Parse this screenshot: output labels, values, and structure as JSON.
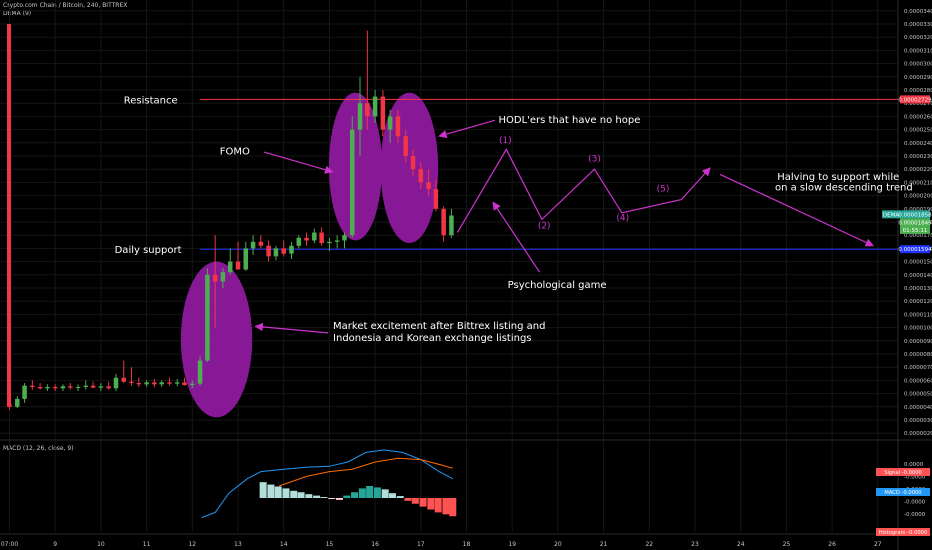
{
  "header": {
    "symbol_line": "Crypto.com Chain / Bitcoin, 240, BITTREX",
    "indicator_line": "DEMA (9)",
    "macd_line": "MACD (12, 26, close, 9)"
  },
  "chart_data": {
    "type": "candlestick",
    "title": "Crypto.com Chain / Bitcoin, 240, BITTREX",
    "y_axis": {
      "ticks": [
        "0.00003400",
        "0.00003300",
        "0.00003200",
        "0.00003100",
        "0.00003000",
        "0.00002900",
        "0.00002800",
        "0.00002700",
        "0.00002600",
        "0.00002500",
        "0.00002400",
        "0.00002300",
        "0.00002200",
        "0.00002100",
        "0.00002000",
        "0.00001900",
        "0.00001800",
        "0.00001700",
        "0.00001600",
        "0.00001500",
        "0.00001400",
        "0.00001300",
        "0.00001200",
        "0.00001100",
        "0.00001000",
        "0.00000900",
        "0.00000800",
        "0.00000700",
        "0.00000600",
        "0.00000500",
        "0.00000400",
        "0.00000300",
        "0.00000200"
      ],
      "price_tags": [
        {
          "label": "0.00002729",
          "value": 2.729e-05,
          "color": "#f23645"
        },
        {
          "label": "DEMA",
          "value": 1.858e-05,
          "color": "#26a69a"
        },
        {
          "label": "0.00001858",
          "value": 1.858e-05,
          "color": "#26a69a"
        },
        {
          "label": "0.00001849",
          "value": 1.798e-05,
          "color": "#4caf50"
        },
        {
          "label": "01:55:11",
          "value": 1.74e-05,
          "color": "#4caf50"
        },
        {
          "label": "0.00001594",
          "value": 1.594e-05,
          "color": "#1e33ff"
        }
      ]
    },
    "x_axis": {
      "ticks": [
        "07:00",
        "9",
        "10",
        "11",
        "12",
        "13",
        "14",
        "15",
        "16",
        "17",
        "18",
        "19",
        "20",
        "21",
        "22",
        "23",
        "24",
        "25",
        "26",
        "27"
      ]
    },
    "levels": [
      {
        "name": "Resistance",
        "value": 2.729e-05,
        "color": "#f23645"
      },
      {
        "name": "Daily support",
        "value": 1.594e-05,
        "color": "#1e33ff"
      }
    ],
    "candles": [
      {
        "d": 8.0,
        "o": 4.2e-06,
        "h": 4.4e-06,
        "l": 3.8e-06,
        "c": 4e-06
      },
      {
        "d": 8.17,
        "o": 4e-06,
        "h": 4.8e-06,
        "l": 3.9e-06,
        "c": 4.6e-06
      },
      {
        "d": 8.33,
        "o": 4.6e-06,
        "h": 5.8e-06,
        "l": 4.3e-06,
        "c": 5.6e-06
      },
      {
        "d": 8.5,
        "o": 5.6e-06,
        "h": 6e-06,
        "l": 5.3e-06,
        "c": 5.5e-06
      },
      {
        "d": 8.67,
        "o": 5.5e-06,
        "h": 5.8e-06,
        "l": 5.3e-06,
        "c": 5.4e-06
      },
      {
        "d": 8.83,
        "o": 5.4e-06,
        "h": 5.7e-06,
        "l": 5.2e-06,
        "c": 5.5e-06
      },
      {
        "d": 9.0,
        "o": 5.5e-06,
        "h": 5.7e-06,
        "l": 5.2e-06,
        "c": 5.4e-06
      },
      {
        "d": 9.17,
        "o": 5.4e-06,
        "h": 5.7e-06,
        "l": 5.2e-06,
        "c": 5.55e-06
      },
      {
        "d": 9.33,
        "o": 5.55e-06,
        "h": 5.8e-06,
        "l": 5.3e-06,
        "c": 5.45e-06
      },
      {
        "d": 9.5,
        "o": 5.45e-06,
        "h": 5.7e-06,
        "l": 5.2e-06,
        "c": 5.5e-06
      },
      {
        "d": 9.67,
        "o": 5.5e-06,
        "h": 6e-06,
        "l": 5.3e-06,
        "c": 5.6e-06
      },
      {
        "d": 9.83,
        "o": 5.6e-06,
        "h": 5.9e-06,
        "l": 5.4e-06,
        "c": 5.45e-06
      },
      {
        "d": 10.0,
        "o": 5.45e-06,
        "h": 5.8e-06,
        "l": 5.2e-06,
        "c": 5.55e-06
      },
      {
        "d": 10.17,
        "o": 5.55e-06,
        "h": 5.9e-06,
        "l": 5.3e-06,
        "c": 5.4e-06
      },
      {
        "d": 10.33,
        "o": 5.4e-06,
        "h": 6.5e-06,
        "l": 5.2e-06,
        "c": 6.2e-06
      },
      {
        "d": 10.5,
        "o": 6.2e-06,
        "h": 7.5e-06,
        "l": 5.8e-06,
        "c": 5.9e-06
      },
      {
        "d": 10.67,
        "o": 5.9e-06,
        "h": 7e-06,
        "l": 5.6e-06,
        "c": 5.8e-06
      },
      {
        "d": 10.83,
        "o": 5.8e-06,
        "h": 6.2e-06,
        "l": 5.5e-06,
        "c": 5.7e-06
      },
      {
        "d": 11.0,
        "o": 5.7e-06,
        "h": 6e-06,
        "l": 5.5e-06,
        "c": 5.85e-06
      },
      {
        "d": 11.17,
        "o": 5.85e-06,
        "h": 6.1e-06,
        "l": 5.5e-06,
        "c": 5.7e-06
      },
      {
        "d": 11.33,
        "o": 5.7e-06,
        "h": 6e-06,
        "l": 5.5e-06,
        "c": 5.85e-06
      },
      {
        "d": 11.5,
        "o": 5.85e-06,
        "h": 6.2e-06,
        "l": 5.6e-06,
        "c": 5.75e-06
      },
      {
        "d": 11.67,
        "o": 5.75e-06,
        "h": 6.1e-06,
        "l": 5.55e-06,
        "c": 5.85e-06
      },
      {
        "d": 11.83,
        "o": 5.85e-06,
        "h": 6.2e-06,
        "l": 5.6e-06,
        "c": 5.65e-06
      },
      {
        "d": 12.0,
        "o": 5.65e-06,
        "h": 6e-06,
        "l": 5.4e-06,
        "c": 5.75e-06
      },
      {
        "d": 12.17,
        "o": 5.75e-06,
        "h": 7.8e-06,
        "l": 5.6e-06,
        "c": 7.5e-06
      },
      {
        "d": 12.33,
        "o": 7.5e-06,
        "h": 1.45e-05,
        "l": 7.4e-06,
        "c": 1.4e-05
      },
      {
        "d": 12.5,
        "o": 1.4e-05,
        "h": 1.7e-05,
        "l": 1e-05,
        "c": 1.35e-05
      },
      {
        "d": 12.67,
        "o": 1.35e-05,
        "h": 1.45e-05,
        "l": 1.3e-05,
        "c": 1.42e-05
      },
      {
        "d": 12.83,
        "o": 1.42e-05,
        "h": 1.6e-05,
        "l": 1.4e-05,
        "c": 1.5e-05
      },
      {
        "d": 13.0,
        "o": 1.5e-05,
        "h": 1.65e-05,
        "l": 1.45e-05,
        "c": 1.44e-05
      },
      {
        "d": 13.17,
        "o": 1.44e-05,
        "h": 1.65e-05,
        "l": 1.43e-05,
        "c": 1.6e-05
      },
      {
        "d": 13.33,
        "o": 1.6e-05,
        "h": 1.7e-05,
        "l": 1.55e-05,
        "c": 1.65e-05
      },
      {
        "d": 13.5,
        "o": 1.65e-05,
        "h": 1.7e-05,
        "l": 1.6e-05,
        "c": 1.62e-05
      },
      {
        "d": 13.67,
        "o": 1.62e-05,
        "h": 1.66e-05,
        "l": 1.5e-05,
        "c": 1.54e-05
      },
      {
        "d": 13.83,
        "o": 1.54e-05,
        "h": 1.62e-05,
        "l": 1.51e-05,
        "c": 1.6e-05
      },
      {
        "d": 14.0,
        "o": 1.6e-05,
        "h": 1.66e-05,
        "l": 1.54e-05,
        "c": 1.56e-05
      },
      {
        "d": 14.17,
        "o": 1.56e-05,
        "h": 1.65e-05,
        "l": 1.52e-05,
        "c": 1.62e-05
      },
      {
        "d": 14.33,
        "o": 1.62e-05,
        "h": 1.7e-05,
        "l": 1.6e-05,
        "c": 1.68e-05
      },
      {
        "d": 14.5,
        "o": 1.68e-05,
        "h": 1.72e-05,
        "l": 1.62e-05,
        "c": 1.66e-05
      },
      {
        "d": 14.67,
        "o": 1.66e-05,
        "h": 1.75e-05,
        "l": 1.64e-05,
        "c": 1.72e-05
      },
      {
        "d": 14.83,
        "o": 1.72e-05,
        "h": 1.76e-05,
        "l": 1.62e-05,
        "c": 1.64e-05
      },
      {
        "d": 15.0,
        "o": 1.64e-05,
        "h": 1.68e-05,
        "l": 1.58e-05,
        "c": 1.65e-05
      },
      {
        "d": 15.17,
        "o": 1.65e-05,
        "h": 1.7e-05,
        "l": 1.6e-05,
        "c": 1.66e-05
      },
      {
        "d": 15.33,
        "o": 1.66e-05,
        "h": 1.72e-05,
        "l": 1.6e-05,
        "c": 1.7e-05
      },
      {
        "d": 15.5,
        "o": 1.7e-05,
        "h": 2.6e-05,
        "l": 1.68e-05,
        "c": 2.5e-05
      },
      {
        "d": 15.67,
        "o": 2.5e-05,
        "h": 2.9e-05,
        "l": 2.3e-05,
        "c": 2.7e-05
      },
      {
        "d": 15.83,
        "o": 2.7e-05,
        "h": 3.25e-05,
        "l": 2.5e-05,
        "c": 2.6e-05
      },
      {
        "d": 16.0,
        "o": 2.6e-05,
        "h": 2.8e-05,
        "l": 2.55e-05,
        "c": 2.75e-05
      },
      {
        "d": 16.17,
        "o": 2.75e-05,
        "h": 2.8e-05,
        "l": 2.45e-05,
        "c": 2.5e-05
      },
      {
        "d": 16.33,
        "o": 2.5e-05,
        "h": 2.65e-05,
        "l": 2.4e-05,
        "c": 2.6e-05
      },
      {
        "d": 16.5,
        "o": 2.6e-05,
        "h": 2.65e-05,
        "l": 2.4e-05,
        "c": 2.45e-05
      },
      {
        "d": 16.67,
        "o": 2.45e-05,
        "h": 2.5e-05,
        "l": 2.25e-05,
        "c": 2.3e-05
      },
      {
        "d": 16.83,
        "o": 2.3e-05,
        "h": 2.35e-05,
        "l": 2.15e-05,
        "c": 2.2e-05
      },
      {
        "d": 17.0,
        "o": 2.2e-05,
        "h": 2.25e-05,
        "l": 2.05e-05,
        "c": 2.1e-05
      },
      {
        "d": 17.17,
        "o": 2.1e-05,
        "h": 2.2e-05,
        "l": 2e-05,
        "c": 2.05e-05
      },
      {
        "d": 17.33,
        "o": 2.05e-05,
        "h": 2.12e-05,
        "l": 1.88e-05,
        "c": 1.9e-05
      },
      {
        "d": 17.5,
        "o": 1.9e-05,
        "h": 1.92e-05,
        "l": 1.65e-05,
        "c": 1.7e-05
      },
      {
        "d": 17.67,
        "o": 1.7e-05,
        "h": 1.9e-05,
        "l": 1.68e-05,
        "c": 1.849e-05
      }
    ],
    "highlights": [
      {
        "name": "excitement-ellipse",
        "cx": 12.53,
        "cy": 9.1e-06,
        "rx": 0.78,
        "ry": 5.9e-06
      },
      {
        "name": "fomo-ellipse",
        "cx": 15.57,
        "cy": 2.22e-05,
        "rx": 0.58,
        "ry": 5.6e-06
      },
      {
        "name": "hodl-ellipse",
        "cx": 16.75,
        "cy": 2.21e-05,
        "rx": 0.63,
        "ry": 5.7e-06
      }
    ],
    "projection": {
      "path": [
        [
          17.8,
          1.72e-05
        ],
        [
          18.87,
          2.35e-05
        ],
        [
          19.65,
          1.82e-05
        ],
        [
          20.8,
          2.2e-05
        ],
        [
          21.4,
          1.87e-05
        ],
        [
          22.7,
          1.97e-05
        ],
        [
          23.33,
          2.21e-05
        ]
      ],
      "labels": [
        {
          "text": "(1)",
          "x": 18.85,
          "y": 2.4e-05
        },
        {
          "text": "(2)",
          "x": 19.7,
          "y": 1.75e-05
        },
        {
          "text": "(3)",
          "x": 20.8,
          "y": 2.26e-05
        },
        {
          "text": "(4)",
          "x": 21.42,
          "y": 1.81e-05
        },
        {
          "text": "(5)",
          "x": 22.3,
          "y": 2.03e-05
        }
      ]
    },
    "annotations": [
      {
        "name": "resistance-label",
        "text": "Resistance",
        "x": 10.5,
        "y": 2.729e-05
      },
      {
        "name": "daily-support-label",
        "text": "Daily support",
        "x": 10.3,
        "y": 1.594e-05
      },
      {
        "name": "fomo-label",
        "text": "FOMO",
        "x": 12.6,
        "y": 2.34e-05
      },
      {
        "name": "hodl-label",
        "text": "HODL'ers that have no hope",
        "x": 18.7,
        "y": 2.58e-05
      },
      {
        "name": "psych-label",
        "text": "Psychological game",
        "x": 18.9,
        "y": 1.33e-05
      },
      {
        "name": "excitement-label-1",
        "text": "Market excitement after Bittrex listing and",
        "x": 15.08,
        "y": 1.02e-05
      },
      {
        "name": "excitement-label-2",
        "text": "Indonesia and Korean exchange listings",
        "x": 15.08,
        "y": 9.3e-06
      },
      {
        "name": "halving-label-1",
        "text": "Halving to support while",
        "x": 24.8,
        "y": 2.15e-05
      },
      {
        "name": "halving-label-2",
        "text": "on a slow descending trend",
        "x": 24.75,
        "y": 2.07e-05
      }
    ],
    "arrows": [
      {
        "name": "fomo-arrow",
        "from": [
          13.57,
          2.33e-05
        ],
        "to": [
          15.07,
          2.18e-05
        ]
      },
      {
        "name": "hodl-arrow",
        "from": [
          18.62,
          2.57e-05
        ],
        "to": [
          17.4,
          2.45e-05
        ]
      },
      {
        "name": "psych-arrow",
        "from": [
          19.6,
          1.42e-05
        ],
        "to": [
          18.58,
          1.95e-05
        ]
      },
      {
        "name": "excitement-arrow",
        "from": [
          14.97,
          9.6e-06
        ],
        "to": [
          13.38,
          1.01e-05
        ]
      },
      {
        "name": "halving-arrow",
        "from": [
          23.55,
          2.16e-05
        ],
        "to": [
          26.9,
          1.62e-05
        ]
      }
    ],
    "macd": {
      "title": "MACD (12, 26, close, 9)",
      "ticks": [
        "0.0000",
        "-0.0000",
        "-0.0000",
        "-0.0000",
        "-0.0000"
      ],
      "tags": [
        {
          "label": "Signal",
          "value": "-0.0000",
          "color": "#ff5252"
        },
        {
          "label": "MACD",
          "value": "-0.0000",
          "color": "#2196f3"
        },
        {
          "label": "Histogram",
          "value": "-0.0000",
          "color": "#ff5252"
        }
      ],
      "macd_line": [
        [
          12.2,
          -0.41
        ],
        [
          12.5,
          -0.3
        ],
        [
          12.8,
          0.1
        ],
        [
          13.2,
          0.4
        ],
        [
          13.5,
          0.55
        ],
        [
          14.0,
          0.6
        ],
        [
          14.5,
          0.64
        ],
        [
          15.0,
          0.66
        ],
        [
          15.4,
          0.75
        ],
        [
          15.8,
          0.95
        ],
        [
          16.2,
          1.0
        ],
        [
          16.6,
          0.95
        ],
        [
          17.0,
          0.8
        ],
        [
          17.4,
          0.55
        ],
        [
          17.7,
          0.4
        ]
      ],
      "signal_line": [
        [
          13.9,
          0.25
        ],
        [
          14.5,
          0.45
        ],
        [
          15.0,
          0.55
        ],
        [
          15.5,
          0.6
        ],
        [
          16.0,
          0.75
        ],
        [
          16.5,
          0.83
        ],
        [
          17.0,
          0.8
        ],
        [
          17.4,
          0.7
        ],
        [
          17.7,
          0.62
        ]
      ],
      "histogram": [
        {
          "d": 13.55,
          "v": 0.33
        },
        {
          "d": 13.72,
          "v": 0.28
        },
        {
          "d": 13.88,
          "v": 0.24
        },
        {
          "d": 14.05,
          "v": 0.2
        },
        {
          "d": 14.22,
          "v": 0.15
        },
        {
          "d": 14.38,
          "v": 0.12
        },
        {
          "d": 14.55,
          "v": 0.08
        },
        {
          "d": 14.72,
          "v": 0.05
        },
        {
          "d": 14.88,
          "v": 0.02
        },
        {
          "d": 15.05,
          "v": -0.02
        },
        {
          "d": 15.22,
          "v": -0.04
        },
        {
          "d": 15.38,
          "v": 0.05
        },
        {
          "d": 15.55,
          "v": 0.12
        },
        {
          "d": 15.72,
          "v": 0.2
        },
        {
          "d": 15.88,
          "v": 0.25
        },
        {
          "d": 16.05,
          "v": 0.22
        },
        {
          "d": 16.22,
          "v": 0.18
        },
        {
          "d": 16.38,
          "v": 0.1
        },
        {
          "d": 16.55,
          "v": 0.04
        },
        {
          "d": 16.72,
          "v": -0.06
        },
        {
          "d": 16.88,
          "v": -0.12
        },
        {
          "d": 17.05,
          "v": -0.18
        },
        {
          "d": 17.22,
          "v": -0.24
        },
        {
          "d": 17.38,
          "v": -0.3
        },
        {
          "d": 17.55,
          "v": -0.34
        },
        {
          "d": 17.7,
          "v": -0.38
        }
      ]
    }
  },
  "colors": {
    "background": "#000000",
    "up_candle": "#4caf50",
    "down_candle": "#f23645",
    "annotation": "#cc33cc",
    "ellipse_fill": "#8e1a9e",
    "grid": "#161616",
    "axis_text": "#c8c8c8"
  }
}
